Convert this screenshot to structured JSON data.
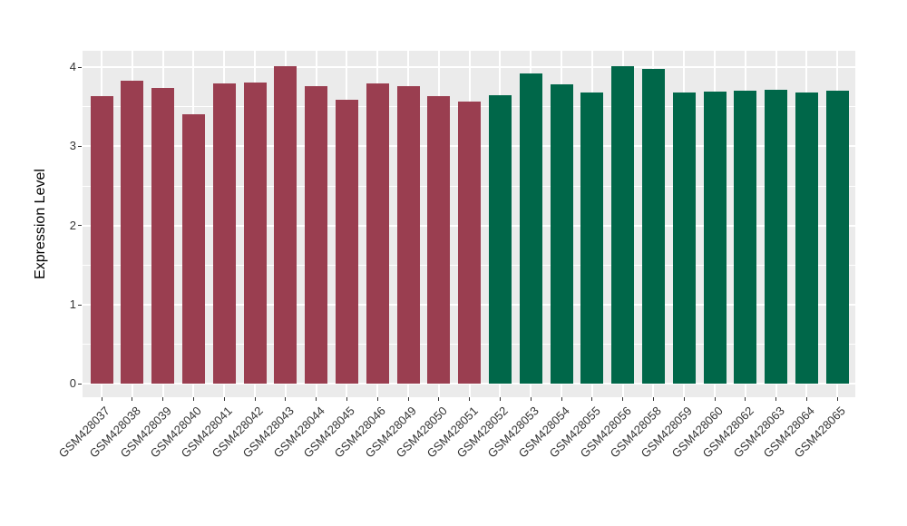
{
  "chart_data": {
    "type": "bar",
    "title": "",
    "xlabel": "",
    "ylabel": "Expression Level",
    "ylim": [
      0,
      4.2
    ],
    "yticks": [
      0,
      1,
      2,
      3,
      4
    ],
    "minor_yticks": [
      0.5,
      1.5,
      2.5,
      3.5
    ],
    "grid": "on",
    "legend": "none",
    "panel_bg": "#EBEBEB",
    "gridline_color": "#FFFFFF",
    "tick_color": "#333333",
    "axis_text_color": "#333333",
    "categories": [
      "GSM428037",
      "GSM428038",
      "GSM428039",
      "GSM428040",
      "GSM428041",
      "GSM428042",
      "GSM428043",
      "GSM428044",
      "GSM428045",
      "GSM428046",
      "GSM428049",
      "GSM428050",
      "GSM428051",
      "GSM428052",
      "GSM428053",
      "GSM428054",
      "GSM428055",
      "GSM428056",
      "GSM428058",
      "GSM428059",
      "GSM428060",
      "GSM428062",
      "GSM428063",
      "GSM428064",
      "GSM428065"
    ],
    "values": [
      3.64,
      3.83,
      3.74,
      3.41,
      3.79,
      3.81,
      4.01,
      3.76,
      3.59,
      3.79,
      3.76,
      3.63,
      3.57,
      3.65,
      3.92,
      3.78,
      3.68,
      4.01,
      3.98,
      3.68,
      3.69,
      3.7,
      3.71,
      3.68,
      3.7
    ],
    "bar_groups": [
      "red_group",
      "red_group",
      "red_group",
      "red_group",
      "red_group",
      "red_group",
      "red_group",
      "red_group",
      "red_group",
      "red_group",
      "red_group",
      "red_group",
      "red_group",
      "green_group",
      "green_group",
      "green_group",
      "green_group",
      "green_group",
      "green_group",
      "green_group",
      "green_group",
      "green_group",
      "green_group",
      "green_group",
      "green_group"
    ],
    "group_colors": {
      "red_group": "#9A3E50",
      "green_group": "#006749"
    }
  }
}
